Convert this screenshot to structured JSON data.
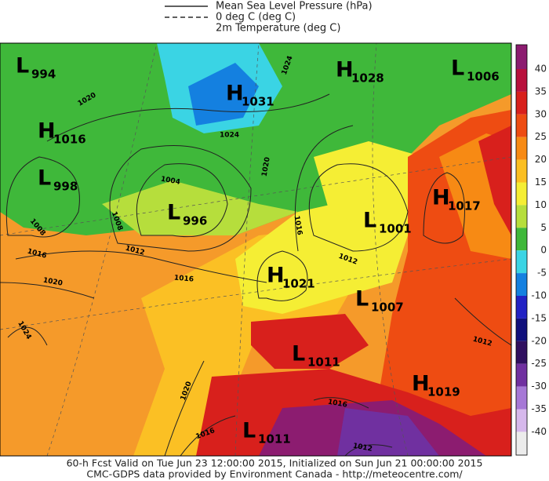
{
  "legend": [
    "Mean Sea Level Pressure (hPa)",
    "0 deg C (deg C)",
    "2m Temperature (deg C)"
  ],
  "pressure_centers": [
    {
      "letter": "L",
      "value": 994
    },
    {
      "letter": "H",
      "value": 1028
    },
    {
      "letter": "L",
      "value": 1006
    },
    {
      "letter": "H",
      "value": 1031
    },
    {
      "letter": "H",
      "value": 1016
    },
    {
      "letter": "L",
      "value": 998
    },
    {
      "letter": "L",
      "value": 996
    },
    {
      "letter": "H",
      "value": 1017
    },
    {
      "letter": "L",
      "value": 1001
    },
    {
      "letter": "H",
      "value": 1021
    },
    {
      "letter": "L",
      "value": 1007
    },
    {
      "letter": "L",
      "value": 1011
    },
    {
      "letter": "H",
      "value": 1019
    },
    {
      "letter": "L",
      "value": 1011
    }
  ],
  "isobar_labels": [
    1020,
    1024,
    1004,
    1008,
    1012,
    1016,
    1020,
    1016,
    1012,
    1008,
    1016,
    1020,
    1024,
    1020,
    1016,
    1016,
    1012,
    1012,
    1024
  ],
  "colorbar": {
    "ticks": [
      40,
      35,
      30,
      25,
      20,
      15,
      10,
      5,
      0,
      -5,
      -10,
      -15,
      -20,
      -25,
      -30,
      -35,
      -40
    ],
    "colors": [
      "#8c1c70",
      "#b8103c",
      "#d8201c",
      "#ee4c12",
      "#f78a14",
      "#fbbf22",
      "#f5ee34",
      "#b6de3c",
      "#3fb83a",
      "#3ad4e4",
      "#1480e0",
      "#2222c4",
      "#10107c",
      "#301060",
      "#7030a0",
      "#a678d6",
      "#d6b8ec",
      "#ececec"
    ]
  },
  "footer": [
    "60-h Fcst Valid on Tue Jun 23 12:00:00 2015, Initialized on Sun Jun 21 00:00:00 2015",
    "CMC-GDPS data provided by Environment Canada - http://meteocentre.com/"
  ]
}
